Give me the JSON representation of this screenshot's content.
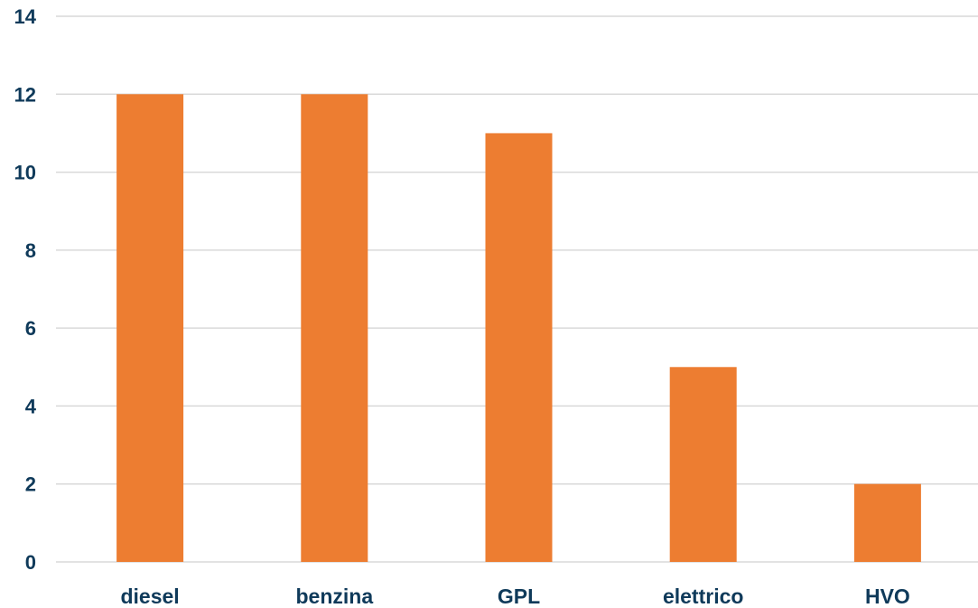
{
  "chart_data": {
    "type": "bar",
    "categories": [
      "diesel",
      "benzina",
      "GPL",
      "elettrico",
      "HVO"
    ],
    "series": [
      {
        "values": [
          12,
          12,
          11,
          5,
          2
        ]
      }
    ],
    "title": "",
    "xlabel": "",
    "ylabel": "",
    "ylim": [
      0,
      14
    ],
    "yticks": [
      "0",
      "2",
      "4",
      "6",
      "8",
      "10",
      "12",
      "14"
    ],
    "grid": true,
    "legend": "none",
    "colors": {
      "bar": "#ED7D31",
      "gridline": "#D9D9D9",
      "text": "#0F3A5A"
    }
  }
}
